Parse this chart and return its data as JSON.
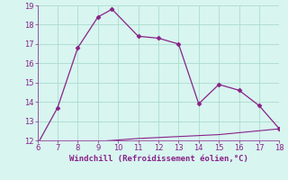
{
  "xlabel": "Windchill (Refroidissement éolien,°C)",
  "line1_x": [
    6,
    7,
    8,
    9,
    9.7,
    11,
    12,
    13,
    14,
    15,
    16,
    17,
    18
  ],
  "line1_y": [
    11.8,
    13.7,
    16.8,
    18.4,
    18.8,
    17.4,
    17.3,
    17.0,
    13.9,
    14.9,
    14.6,
    13.8,
    12.6
  ],
  "line2_x": [
    6,
    7,
    8,
    9,
    9.7,
    11,
    12,
    13,
    14,
    15,
    16,
    17,
    18
  ],
  "line2_y": [
    11.8,
    11.85,
    11.9,
    11.95,
    12.0,
    12.1,
    12.15,
    12.2,
    12.25,
    12.3,
    12.4,
    12.5,
    12.6
  ],
  "line_color": "#882288",
  "bg_color": "#d8f5f0",
  "grid_color": "#aaddcc",
  "tick_color": "#882288",
  "label_color": "#882288",
  "xlim": [
    6,
    18
  ],
  "ylim": [
    12,
    19
  ],
  "xticks": [
    6,
    7,
    8,
    9,
    10,
    11,
    12,
    13,
    14,
    15,
    16,
    17,
    18
  ],
  "yticks": [
    12,
    13,
    14,
    15,
    16,
    17,
    18,
    19
  ],
  "tick_fontsize": 6,
  "xlabel_fontsize": 6.5,
  "marker": "D",
  "markersize": 2.5,
  "linewidth1": 0.9,
  "linewidth2": 0.8
}
